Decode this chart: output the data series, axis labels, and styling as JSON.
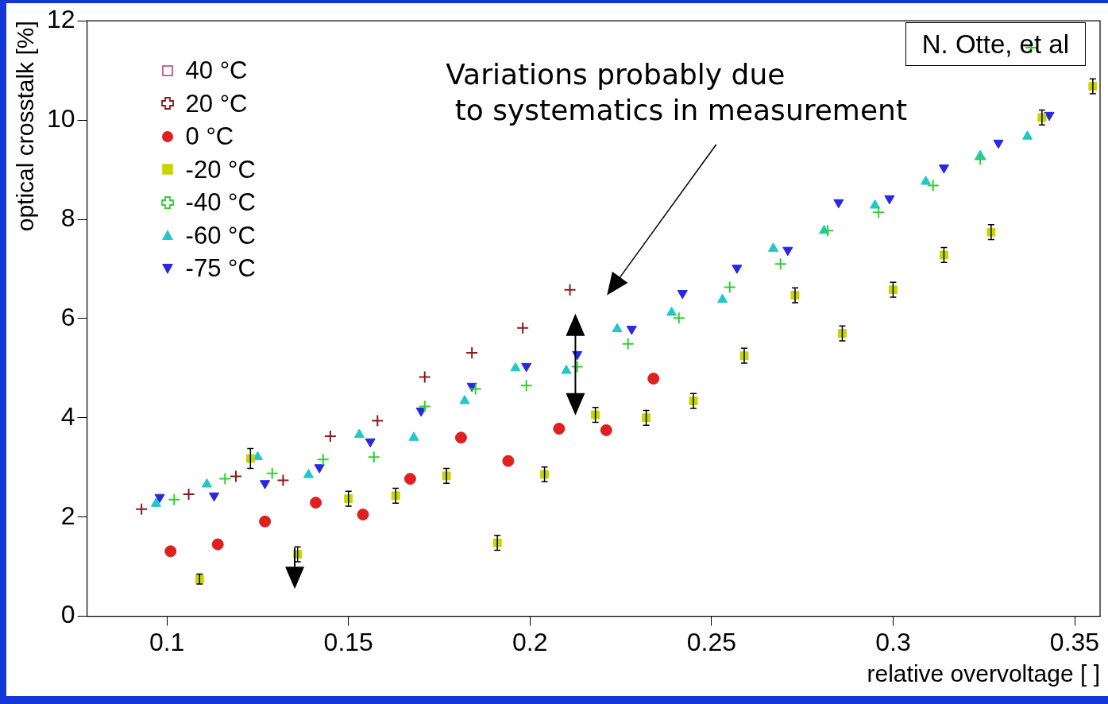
{
  "chart_data": {
    "type": "scatter",
    "xlabel": "relative overvoltage [ ]",
    "ylabel": "optical crosstalk [%]",
    "xlim": [
      0.078,
      0.357
    ],
    "ylim": [
      0,
      12
    ],
    "xticks": [
      0.1,
      0.15,
      0.2,
      0.25,
      0.3,
      0.35
    ],
    "yticks": [
      0,
      2,
      4,
      6,
      8,
      10,
      12
    ],
    "grid": false,
    "legend": "top left",
    "annotations": [
      "Variations probably due\n to systematics in measurement",
      "N. Otte, et al"
    ],
    "series": [
      {
        "name": "40 °C",
        "color": "#c0307a",
        "marker": "square"
      },
      {
        "name": "20 °C",
        "color": "#8b1a1a",
        "marker": "cross",
        "x": [
          0.093,
          0.106,
          0.119,
          0.132,
          0.145,
          0.158,
          0.171,
          0.184,
          0.198,
          0.211
        ],
        "values": [
          2.16,
          2.46,
          2.82,
          2.74,
          3.63,
          3.94,
          4.82,
          5.31,
          5.81,
          6.58
        ]
      },
      {
        "name": "0 °C",
        "color": "#e02020",
        "marker": "circle",
        "x": [
          0.101,
          0.114,
          0.127,
          0.141,
          0.154,
          0.167,
          0.181,
          0.194,
          0.208,
          0.221,
          0.234
        ],
        "values": [
          1.31,
          1.45,
          1.91,
          2.29,
          2.05,
          2.77,
          3.6,
          3.13,
          3.78,
          3.75,
          4.79
        ]
      },
      {
        "name": "-20 °C",
        "color": "#c8d400",
        "marker": "square",
        "x": [
          0.109,
          0.123,
          0.136,
          0.15,
          0.163,
          0.177,
          0.191,
          0.204,
          0.218,
          0.232,
          0.245,
          0.259,
          0.273,
          0.286,
          0.3,
          0.314,
          0.327,
          0.341,
          0.355
        ],
        "values": [
          0.75,
          3.18,
          1.25,
          2.37,
          2.43,
          2.83,
          1.48,
          2.86,
          4.06,
          4.0,
          4.34,
          5.25,
          6.47,
          5.7,
          6.58,
          7.28,
          7.74,
          10.05,
          10.68
        ],
        "errors": [
          0.1,
          0.2,
          0.15,
          0.15,
          0.15,
          0.15,
          0.15,
          0.15,
          0.15,
          0.15,
          0.15,
          0.15,
          0.15,
          0.15,
          0.15,
          0.15,
          0.15,
          0.15,
          0.15
        ]
      },
      {
        "name": "-40 °C",
        "color": "#30d030",
        "marker": "cross",
        "x": [
          0.102,
          0.116,
          0.129,
          0.143,
          0.157,
          0.171,
          0.185,
          0.199,
          0.213,
          0.227,
          0.241,
          0.255,
          0.269,
          0.282,
          0.296,
          0.311,
          0.324,
          0.338
        ],
        "values": [
          2.35,
          2.77,
          2.88,
          3.16,
          3.21,
          4.23,
          4.58,
          4.65,
          5.03,
          5.49,
          6.01,
          6.63,
          7.1,
          7.77,
          8.14,
          8.68,
          9.21,
          11.46
        ]
      },
      {
        "name": "-60 °C",
        "color": "#20c8c8",
        "marker": "triangle",
        "x": [
          0.097,
          0.111,
          0.125,
          0.139,
          0.153,
          0.168,
          0.182,
          0.196,
          0.21,
          0.224,
          0.239,
          0.253,
          0.267,
          0.281,
          0.295,
          0.309,
          0.324,
          0.337
        ],
        "values": [
          2.27,
          2.66,
          3.21,
          2.85,
          3.66,
          3.6,
          4.34,
          5.0,
          4.95,
          5.79,
          6.12,
          6.38,
          7.41,
          7.77,
          8.28,
          8.76,
          9.28,
          9.67
        ]
      },
      {
        "name": "-75 °C",
        "color": "#2828e0",
        "marker": "triangle-down",
        "x": [
          0.098,
          0.113,
          0.127,
          0.142,
          0.156,
          0.17,
          0.184,
          0.199,
          0.213,
          0.228,
          0.242,
          0.257,
          0.271,
          0.285,
          0.299,
          0.314,
          0.329,
          0.343
        ],
        "values": [
          2.4,
          2.43,
          2.68,
          3.0,
          3.52,
          4.14,
          4.64,
          5.04,
          5.28,
          5.79,
          6.51,
          7.02,
          7.38,
          8.34,
          8.42,
          9.04,
          9.54,
          10.1
        ]
      }
    ]
  }
}
